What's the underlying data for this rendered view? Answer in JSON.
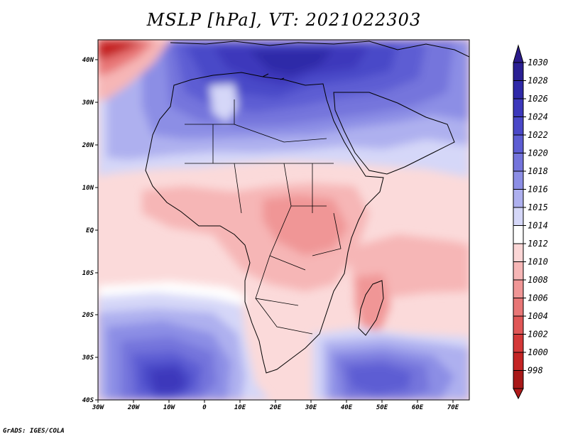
{
  "title": "MSLP [hPa], VT: 2021022303",
  "credit": "GrADS: IGES/COLA",
  "lat_labels": [
    "40N",
    "30N",
    "20N",
    "10N",
    "EQ",
    "10S",
    "20S",
    "30S",
    "40S"
  ],
  "lon_labels": [
    "30W",
    "20W",
    "10W",
    "0",
    "10E",
    "20E",
    "30E",
    "40E",
    "50E",
    "60E",
    "70E"
  ],
  "colorbar": {
    "levels": [
      "1030",
      "1028",
      "1026",
      "1024",
      "1022",
      "1020",
      "1018",
      "1016",
      "1015",
      "1014",
      "1012",
      "1010",
      "1008",
      "1006",
      "1004",
      "1002",
      "1000",
      "998"
    ],
    "colors": [
      "#2a1f93",
      "#2f29a8",
      "#3c38bb",
      "#4a48c8",
      "#5d5dd3",
      "#7474dc",
      "#8c8ee5",
      "#aeb0ef",
      "#d5d7f8",
      "#ffffff",
      "#fbd6d6",
      "#f6b6b6",
      "#f09696",
      "#e87676",
      "#e05656",
      "#d43838",
      "#c42424",
      "#a81818"
    ],
    "top_cap": "#2a1a8a",
    "bottom_cap": "#b01a1a"
  },
  "field_colors": {
    "ocean_bg": "#fbdada",
    "high_1": "#d5d7f8",
    "high_2": "#aeb0ef",
    "high_3": "#8c8ee5",
    "high_4": "#7474dc",
    "high_5": "#5d5dd3",
    "high_6": "#4a48c8",
    "high_7": "#3c38bb",
    "high_8": "#2f29a8",
    "low_1": "#f6b6b6",
    "low_2": "#f09696",
    "low_3": "#e87676",
    "low_4": "#e05656",
    "low_5": "#c42424"
  }
}
